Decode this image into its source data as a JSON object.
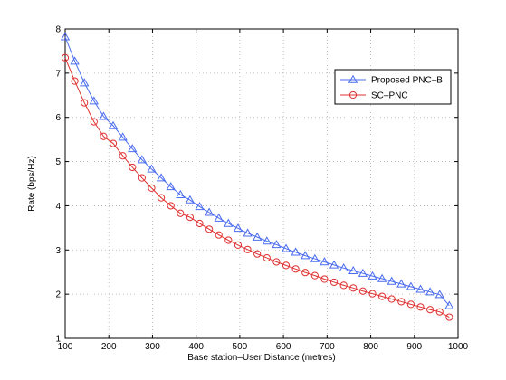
{
  "chart_data": {
    "type": "line",
    "title": "",
    "xlabel": "Base station–User Distance (metres)",
    "ylabel": "Rate (bps/Hz)",
    "xlim": [
      100,
      1000
    ],
    "ylim": [
      1,
      8
    ],
    "xticks": [
      "100",
      "200",
      "300",
      "400",
      "500",
      "600",
      "700",
      "800",
      "900",
      "1000"
    ],
    "yticks": [
      "1",
      "2",
      "3",
      "4",
      "5",
      "6",
      "7",
      "8"
    ],
    "grid": true,
    "legend_position": "top-right",
    "x": [
      100,
      122,
      144,
      166,
      188,
      210,
      232,
      254,
      276,
      298,
      320,
      342,
      364,
      386,
      408,
      430,
      452,
      474,
      496,
      518,
      540,
      562,
      584,
      606,
      628,
      650,
      672,
      694,
      716,
      738,
      760,
      782,
      804,
      826,
      848,
      870,
      892,
      914,
      936,
      958,
      980
    ],
    "series": [
      {
        "name": "Proposed PNC–B",
        "color": "#4a6cf0",
        "marker": "triangle",
        "values": [
          7.82,
          7.27,
          6.78,
          6.37,
          6.02,
          5.81,
          5.55,
          5.29,
          5.04,
          4.83,
          4.63,
          4.43,
          4.25,
          4.13,
          3.98,
          3.85,
          3.72,
          3.6,
          3.49,
          3.38,
          3.29,
          3.2,
          3.12,
          3.03,
          2.95,
          2.87,
          2.8,
          2.73,
          2.66,
          2.59,
          2.53,
          2.47,
          2.41,
          2.35,
          2.29,
          2.23,
          2.17,
          2.11,
          2.05,
          1.99,
          1.74
        ]
      },
      {
        "name": "SC–PNC",
        "color": "#e03030",
        "marker": "circle",
        "values": [
          7.35,
          6.82,
          6.33,
          5.9,
          5.57,
          5.41,
          5.13,
          4.87,
          4.63,
          4.4,
          4.18,
          4.0,
          3.83,
          3.74,
          3.6,
          3.47,
          3.34,
          3.22,
          3.11,
          3.01,
          2.91,
          2.82,
          2.73,
          2.65,
          2.57,
          2.49,
          2.42,
          2.34,
          2.27,
          2.2,
          2.14,
          2.07,
          2.01,
          1.95,
          1.89,
          1.83,
          1.77,
          1.71,
          1.65,
          1.6,
          1.48
        ]
      }
    ]
  }
}
